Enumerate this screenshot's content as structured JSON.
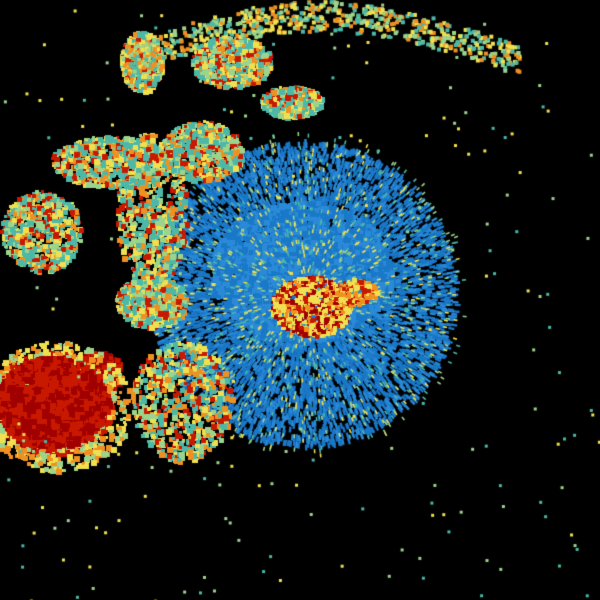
{
  "background": "#000000",
  "palette": {
    "blue": "#1a78c8",
    "light_blue": "#2a8ad8",
    "teal": "#4cb8a8",
    "green": "#9cd48c",
    "yellow": "#f0e050",
    "orange": "#f09020",
    "red": "#c81800",
    "dark_red": "#a00000"
  }
}
